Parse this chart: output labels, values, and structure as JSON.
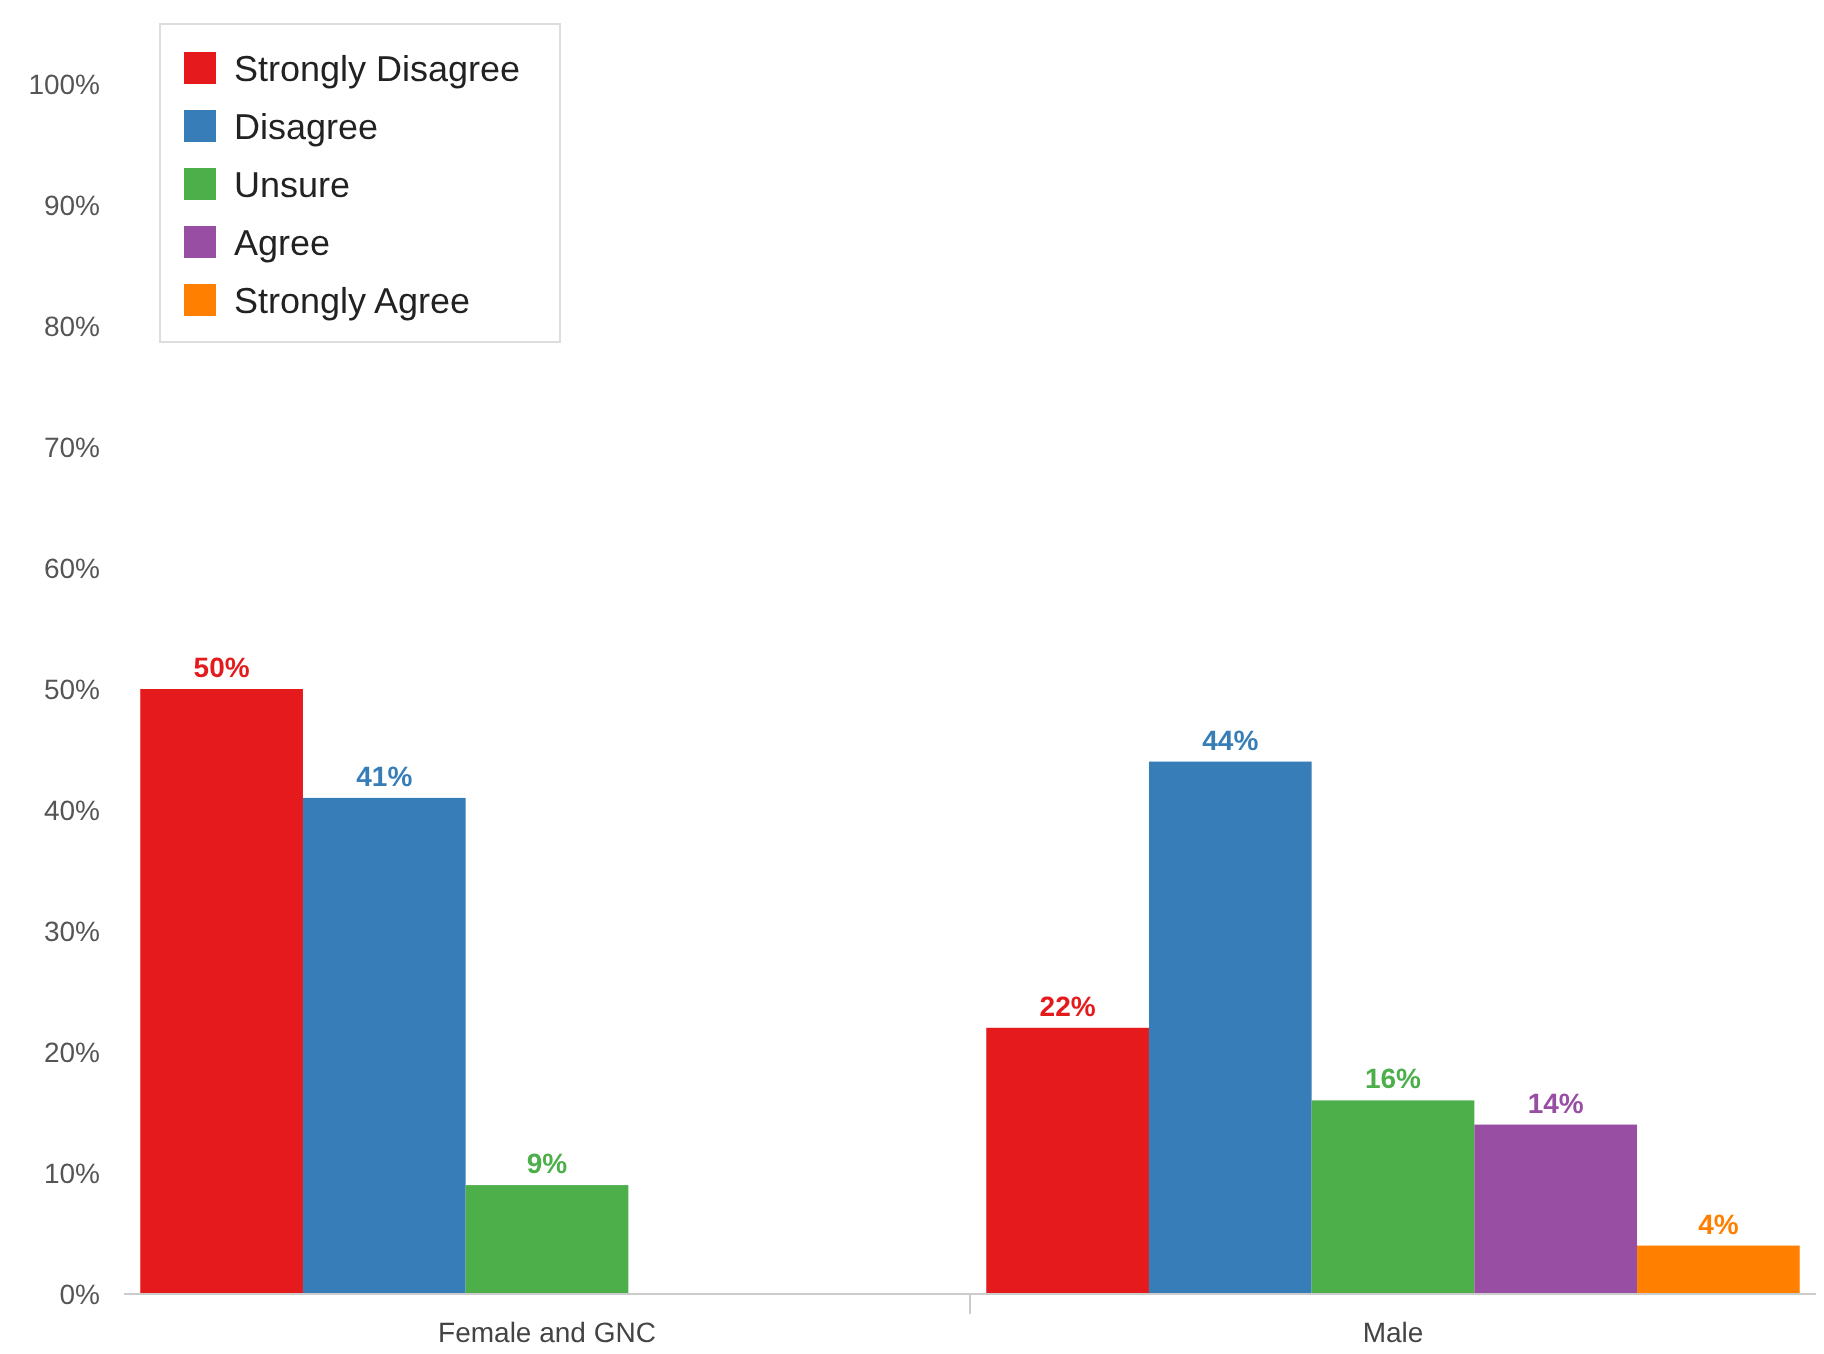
{
  "chart_data": {
    "type": "bar",
    "categories": [
      "Female and GNC",
      "Male"
    ],
    "series": [
      {
        "name": "Strongly Disagree",
        "color": "#e41a1c",
        "values": [
          50,
          22
        ],
        "value_labels": [
          "50%",
          "22%"
        ]
      },
      {
        "name": "Disagree",
        "color": "#377eb8",
        "values": [
          41,
          44
        ],
        "value_labels": [
          "41%",
          "44%"
        ]
      },
      {
        "name": "Unsure",
        "color": "#4daf4a",
        "values": [
          9,
          16
        ],
        "value_labels": [
          "9%",
          "16%"
        ]
      },
      {
        "name": "Agree",
        "color": "#984ea3",
        "values": [
          null,
          14
        ],
        "value_labels": [
          null,
          "14%"
        ]
      },
      {
        "name": "Strongly Agree",
        "color": "#ff7f00",
        "values": [
          null,
          4
        ],
        "value_labels": [
          null,
          "4%"
        ]
      }
    ],
    "ylim": [
      0,
      100
    ],
    "yticks": [
      {
        "value": 0,
        "label": "0%"
      },
      {
        "value": 10,
        "label": "10%"
      },
      {
        "value": 20,
        "label": "20%"
      },
      {
        "value": 30,
        "label": "30%"
      },
      {
        "value": 40,
        "label": "40%"
      },
      {
        "value": 50,
        "label": "50%"
      },
      {
        "value": 60,
        "label": "60%"
      },
      {
        "value": 70,
        "label": "70%"
      },
      {
        "value": 80,
        "label": "80%"
      },
      {
        "value": 90,
        "label": "90%"
      },
      {
        "value": 100,
        "label": "100%"
      }
    ],
    "grid": false,
    "legend": "top left"
  }
}
